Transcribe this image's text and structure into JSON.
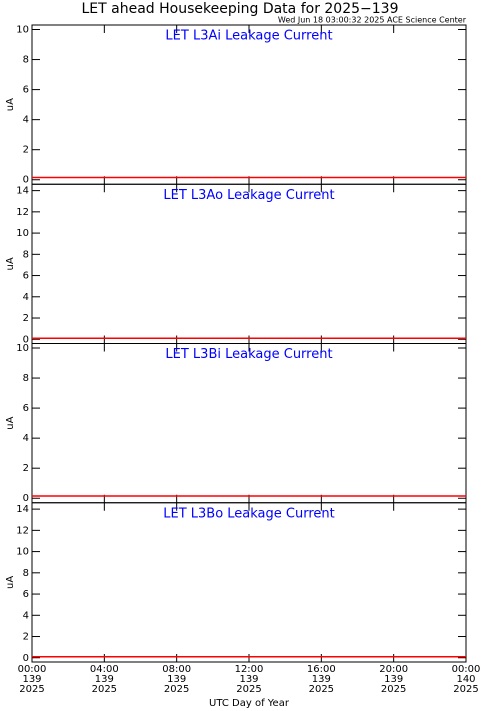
{
  "title": "LET ahead Housekeeping Data for 2025−139",
  "subtitle": "Wed Jun 18 03:00:32 2025 ACE Science Center",
  "chart_data": [
    {
      "type": "line",
      "title": "LET L3Ai Leakage Current",
      "ylabel": "uA",
      "ylim": [
        -0.3,
        10.3
      ],
      "yticks": [
        0,
        2,
        4,
        6,
        8,
        10
      ],
      "xlim": [
        0,
        24
      ],
      "x": [
        0,
        6,
        12,
        18,
        24
      ],
      "series": [
        {
          "color": "#ff0000",
          "values": [
            0.15,
            0.15,
            0.15,
            0.15,
            0.15
          ]
        }
      ]
    },
    {
      "type": "line",
      "title": "LET L3Ao Leakage Current",
      "ylabel": "uA",
      "ylim": [
        -0.4,
        14.6
      ],
      "yticks": [
        0,
        2,
        4,
        6,
        8,
        10,
        12,
        14
      ],
      "xlim": [
        0,
        24
      ],
      "x": [
        0,
        6,
        12,
        18,
        24
      ],
      "series": [
        {
          "color": "#ff0000",
          "values": [
            0.1,
            0.1,
            0.1,
            0.1,
            0.1
          ]
        }
      ]
    },
    {
      "type": "line",
      "title": "LET L3Bi Leakage Current",
      "ylabel": "uA",
      "ylim": [
        -0.3,
        10.3
      ],
      "yticks": [
        0,
        2,
        4,
        6,
        8,
        10
      ],
      "xlim": [
        0,
        24
      ],
      "x": [
        0,
        6,
        12,
        18,
        24
      ],
      "series": [
        {
          "color": "#ff0000",
          "values": [
            0.15,
            0.15,
            0.15,
            0.15,
            0.15
          ]
        }
      ]
    },
    {
      "type": "line",
      "title": "LET L3Bo Leakage Current",
      "ylabel": "uA",
      "ylim": [
        -0.4,
        14.6
      ],
      "yticks": [
        0,
        2,
        4,
        6,
        8,
        10,
        12,
        14
      ],
      "xlim": [
        0,
        24
      ],
      "x": [
        0,
        6,
        12,
        18,
        24
      ],
      "series": [
        {
          "color": "#ff0000",
          "values": [
            0.1,
            0.1,
            0.1,
            0.1,
            0.1
          ]
        }
      ],
      "xlabel": "UTC Day of Year",
      "xticks": [
        {
          "value": 0,
          "label": "00:00\n139\n2025"
        },
        {
          "value": 4,
          "label": "04:00\n139\n2025"
        },
        {
          "value": 8,
          "label": "08:00\n139\n2025"
        },
        {
          "value": 12,
          "label": "12:00\n139\n2025"
        },
        {
          "value": 16,
          "label": "16:00\n139\n2025"
        },
        {
          "value": 20,
          "label": "20:00\n139\n2025"
        },
        {
          "value": 24,
          "label": "00:00\n140\n2025"
        }
      ]
    }
  ]
}
